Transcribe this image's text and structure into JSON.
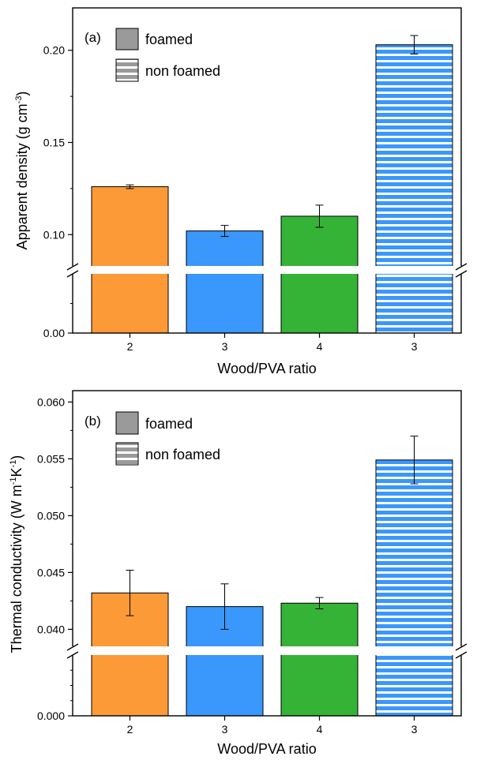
{
  "chart_data": [
    {
      "type": "bar",
      "panel_label": "(a)",
      "xlabel": "Wood/PVA ratio",
      "ylabel": "Apparent density (g cm",
      "ylabel_sup": "-3",
      "ylabel_close": ")",
      "categories": [
        "2",
        "3",
        "4",
        "3"
      ],
      "values": [
        0.126,
        0.102,
        0.11,
        0.203
      ],
      "errors": [
        0.001,
        0.003,
        0.006,
        0.005
      ],
      "styles": [
        "foamed",
        "foamed",
        "foamed",
        "non foamed"
      ],
      "colors": [
        "#FB9A37",
        "#3A97FB",
        "#34B336",
        "#3A97FB"
      ],
      "axis_break": true,
      "ylim_upper": [
        0.083,
        0.223
      ],
      "ylim_lower": [
        0.0,
        0.025
      ],
      "yticks_upper": [
        0.1,
        0.15,
        0.2
      ],
      "ytick_labels_upper": [
        "0.10",
        "0.15",
        "0.20"
      ],
      "yticks_lower": [
        0.0
      ],
      "ytick_labels_lower": [
        "0.00"
      ],
      "legend": [
        {
          "label": "foamed",
          "style": "solid",
          "color": "#9a9a9a"
        },
        {
          "label": "non foamed",
          "style": "hatched",
          "color": "#9a9a9a"
        }
      ],
      "legend_position": "top-left",
      "grid": false
    },
    {
      "type": "bar",
      "panel_label": "(b)",
      "xlabel": "Wood/PVA ratio",
      "ylabel": "Thermal conductivity (W m",
      "ylabel_sup1": "-1",
      "ylabel_mid": "K",
      "ylabel_sup2": "-1",
      "ylabel_close": ")",
      "categories": [
        "2",
        "3",
        "4",
        "3"
      ],
      "values": [
        0.0432,
        0.042,
        0.0423,
        0.0549
      ],
      "errors": [
        0.002,
        0.002,
        0.0005,
        0.0021
      ],
      "styles": [
        "foamed",
        "foamed",
        "foamed",
        "non foamed"
      ],
      "colors": [
        "#FB9A37",
        "#3A97FB",
        "#34B336",
        "#3A97FB"
      ],
      "axis_break": true,
      "ylim_upper": [
        0.0385,
        0.061
      ],
      "ylim_lower": [
        0.0,
        0.004
      ],
      "yticks_upper": [
        0.04,
        0.045,
        0.05,
        0.055,
        0.06
      ],
      "ytick_labels_upper": [
        "0.040",
        "0.045",
        "0.050",
        "0.055",
        "0.060"
      ],
      "yticks_lower": [
        0.0
      ],
      "ytick_labels_lower": [
        "0.000"
      ],
      "legend": [
        {
          "label": "foamed",
          "style": "solid",
          "color": "#9a9a9a"
        },
        {
          "label": "non foamed",
          "style": "hatched",
          "color": "#9a9a9a"
        }
      ],
      "legend_position": "top-left",
      "grid": false
    }
  ]
}
